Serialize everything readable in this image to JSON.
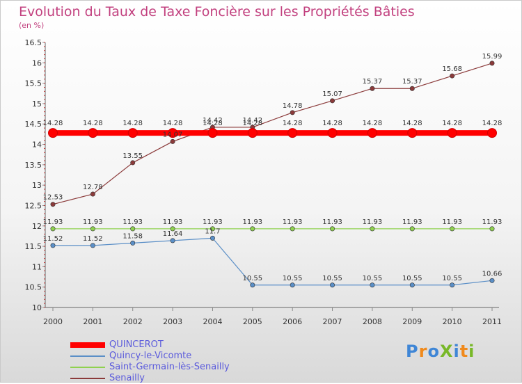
{
  "title": "Evolution du Taux de Taxe Foncière sur les Propriétés Bâties",
  "unit": "(en %)",
  "logo": {
    "text": "ProXiti",
    "colors": [
      "#3f86d6",
      "#f08a1c",
      "#78b828"
    ]
  },
  "chart_data": {
    "type": "line",
    "title": "Evolution du Taux de Taxe Foncière sur les Propriétés Bâties",
    "ylabel": "(en %)",
    "xlabel": "",
    "ylim": [
      10,
      16.5
    ],
    "yticks": [
      10,
      10.5,
      11,
      11.5,
      12,
      12.5,
      13,
      13.5,
      14,
      14.5,
      15,
      15.5,
      16,
      16.5
    ],
    "ytick_labels": [
      "10",
      "10.5",
      "11",
      "11.5",
      "12",
      "12.5",
      "13",
      "13.5",
      "14",
      "14.5",
      "15",
      "15.5",
      "16",
      "16.5"
    ],
    "categories": [
      "2000",
      "2001",
      "2002",
      "2003",
      "2004",
      "2005",
      "2006",
      "2007",
      "2008",
      "2009",
      "2010",
      "2011"
    ],
    "grid": false,
    "legend_position": "bottom-left",
    "series": [
      {
        "name": "QUINCEROT",
        "color": "#ff0000",
        "emphasis": true,
        "values": [
          14.28,
          14.28,
          14.28,
          14.28,
          14.28,
          14.28,
          14.28,
          14.28,
          14.28,
          14.28,
          14.28,
          14.28
        ],
        "labels": [
          "14.28",
          "14.28",
          "14.28",
          "14.28",
          "14.28",
          "14.28",
          "14.28",
          "14.28",
          "14.28",
          "14.28",
          "14.28",
          "14.28"
        ]
      },
      {
        "name": "Quincy-le-Vicomte",
        "color": "#5b8fc7",
        "emphasis": false,
        "values": [
          11.52,
          11.52,
          11.58,
          11.64,
          11.7,
          10.55,
          10.55,
          10.55,
          10.55,
          10.55,
          10.55,
          10.66
        ],
        "labels": [
          "11.52",
          "11.52",
          "11.58",
          "11.64",
          "11.7",
          "10.55",
          "10.55",
          "10.55",
          "10.55",
          "10.55",
          "10.55",
          "10.66"
        ]
      },
      {
        "name": "Saint-Germain-lès-Senailly",
        "color": "#8fd14f",
        "emphasis": false,
        "values": [
          11.93,
          11.93,
          11.93,
          11.93,
          11.93,
          11.93,
          11.93,
          11.93,
          11.93,
          11.93,
          11.93,
          11.93
        ],
        "labels": [
          "11.93",
          "11.93",
          "11.93",
          "11.93",
          "11.93",
          "11.93",
          "11.93",
          "11.93",
          "11.93",
          "11.93",
          "11.93",
          "11.93"
        ]
      },
      {
        "name": "Senailly",
        "color": "#8b3a3a",
        "emphasis": false,
        "values": [
          12.53,
          12.78,
          13.55,
          14.07,
          14.42,
          14.42,
          14.78,
          15.07,
          15.37,
          15.37,
          15.68,
          15.99
        ],
        "labels": [
          "12.53",
          "12.78",
          "13.55",
          "14.07",
          "14.42",
          "14.42",
          "14.78",
          "15.07",
          "15.37",
          "15.37",
          "15.68",
          "15.99"
        ]
      }
    ]
  }
}
